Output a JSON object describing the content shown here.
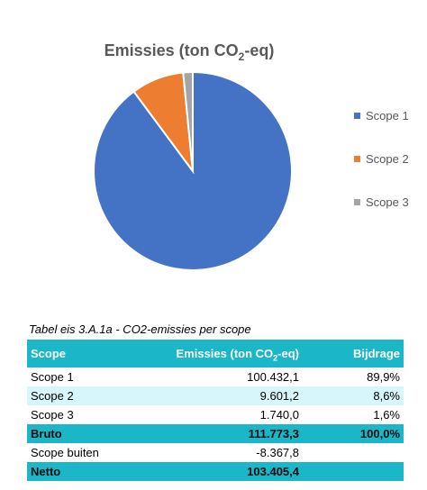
{
  "chart_data": {
    "type": "pie",
    "title": "Emissies (ton CO₂-eq)",
    "categories": [
      "Scope 1",
      "Scope 2",
      "Scope 3"
    ],
    "values": [
      100432.1,
      9601.2,
      1740.0
    ],
    "colors": [
      "#4472c4",
      "#ed7d31",
      "#a5a5a5"
    ],
    "legend_position": "right"
  },
  "table": {
    "caption": "Tabel eis 3.A.1a - CO2-emissies per scope",
    "headers": {
      "scope": "Scope",
      "emissions_pre": "Emissies (ton CO",
      "emissions_sub": "2",
      "emissions_post": "-eq)",
      "share": "Bijdrage"
    },
    "rows": [
      {
        "scope": "Scope 1",
        "emissions": "100.432,1",
        "share": "89,9%"
      },
      {
        "scope": "Scope 2",
        "emissions": "9.601,2",
        "share": "8,6%"
      },
      {
        "scope": "Scope 3",
        "emissions": "1.740,0",
        "share": "1,6%"
      },
      {
        "scope": "Bruto",
        "emissions": "111.773,3",
        "share": "100,0%"
      },
      {
        "scope": "Scope buiten",
        "emissions": "-8.367,8",
        "share": ""
      },
      {
        "scope": "Netto",
        "emissions": "103.405,4",
        "share": ""
      }
    ]
  }
}
